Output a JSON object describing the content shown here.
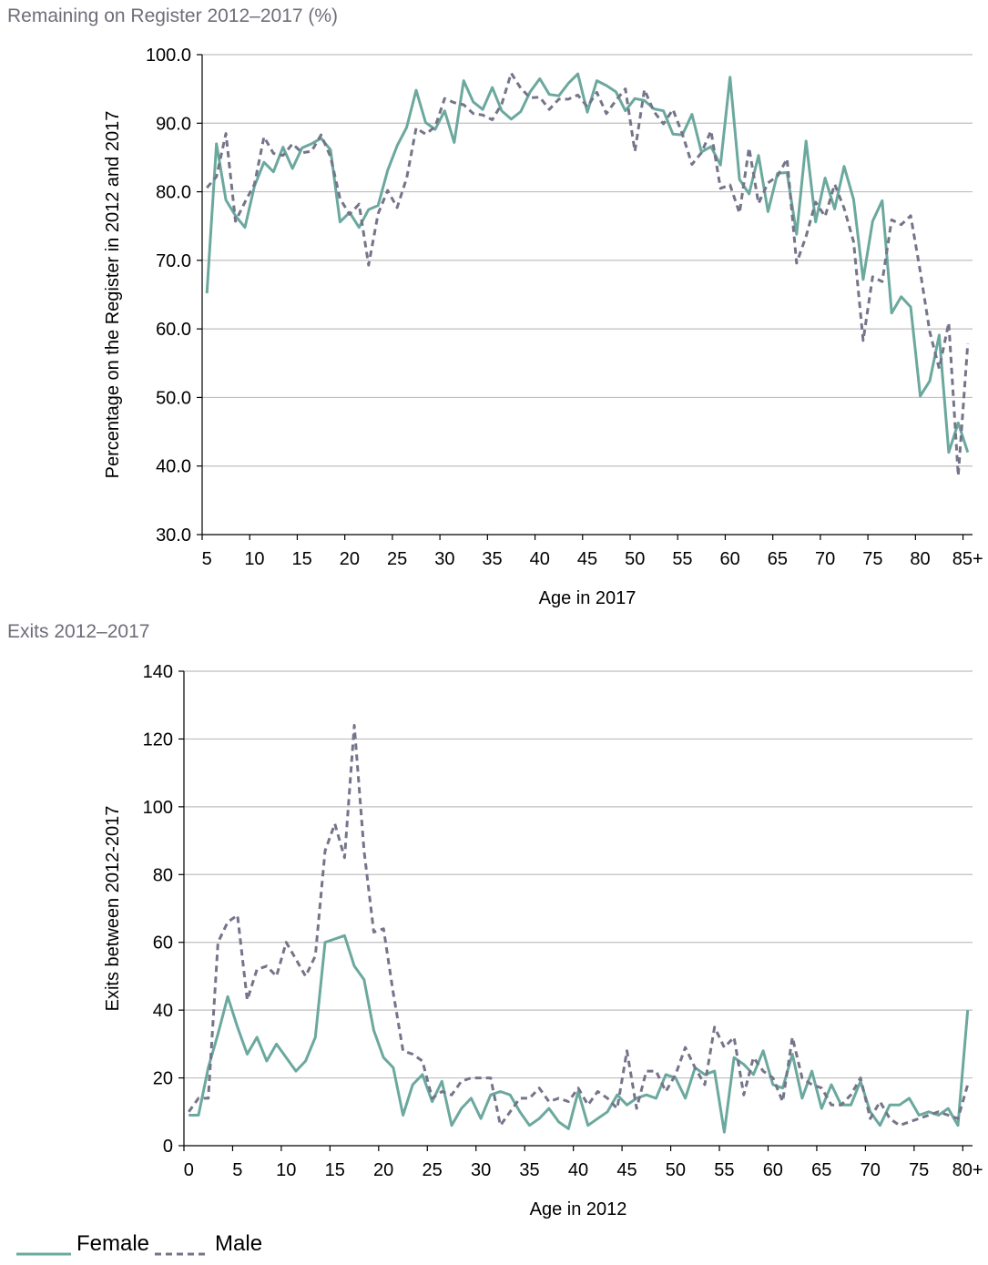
{
  "colors": {
    "female": "#6ba89e",
    "male": "#74748a",
    "grid": "#bfbfbf"
  },
  "legend": {
    "female": "Female",
    "male": "Male"
  },
  "chart_data": [
    {
      "type": "line",
      "title": "Remaining on Register 2012–2017 (%)",
      "xlabel": "Age in 2017",
      "ylabel": "Percentage on the Register in 2012 and 2017",
      "ylim": [
        30,
        100
      ],
      "yticks": [
        "30.0",
        "40.0",
        "50.0",
        "60.0",
        "70.0",
        "80.0",
        "90.0",
        "100.0"
      ],
      "x": [
        "5",
        "6",
        "7",
        "8",
        "9",
        "10",
        "11",
        "12",
        "13",
        "14",
        "15",
        "16",
        "17",
        "18",
        "19",
        "20",
        "21",
        "22",
        "23",
        "24",
        "25",
        "26",
        "27",
        "28",
        "29",
        "30",
        "31",
        "32",
        "33",
        "34",
        "35",
        "36",
        "37",
        "38",
        "39",
        "40",
        "41",
        "42",
        "43",
        "44",
        "45",
        "46",
        "47",
        "48",
        "49",
        "50",
        "51",
        "52",
        "53",
        "54",
        "55",
        "56",
        "57",
        "58",
        "59",
        "60",
        "61",
        "62",
        "63",
        "64",
        "65",
        "66",
        "67",
        "68",
        "69",
        "70",
        "71",
        "72",
        "73",
        "74",
        "75",
        "76",
        "77",
        "78",
        "79",
        "80",
        "81",
        "82",
        "83",
        "84",
        "85+"
      ],
      "xtick_labels": [
        "5",
        "10",
        "15",
        "20",
        "25",
        "30",
        "35",
        "40",
        "45",
        "50",
        "55",
        "60",
        "65",
        "70",
        "75",
        "80",
        "85+"
      ],
      "grid": true,
      "legend_position": "bottom-left",
      "series": [
        {
          "name": "Female",
          "style": "solid",
          "values": [
            65.2,
            87.0,
            78.8,
            76.5,
            74.8,
            80.8,
            84.3,
            82.9,
            86.5,
            83.4,
            86.4,
            87.0,
            87.8,
            86.1,
            75.6,
            77.0,
            74.8,
            77.4,
            78.0,
            83.1,
            86.7,
            89.4,
            94.8,
            90.1,
            89.1,
            91.8,
            87.2,
            96.2,
            93.1,
            92.0,
            95.2,
            91.8,
            90.6,
            91.7,
            94.6,
            96.5,
            94.2,
            94.0,
            95.8,
            97.2,
            91.6,
            96.2,
            95.5,
            94.6,
            91.8,
            93.6,
            93.3,
            92.1,
            91.8,
            88.4,
            88.3,
            91.3,
            85.8,
            86.6,
            83.9,
            96.7,
            81.8,
            79.7,
            85.3,
            77.1,
            82.7,
            82.8,
            73.8,
            87.4,
            75.6,
            82.0,
            77.5,
            83.7,
            78.9,
            67.2,
            75.7,
            78.7,
            62.3,
            64.7,
            63.2,
            50.2,
            52.4,
            59.1,
            42.0,
            46.3,
            42.0
          ]
        },
        {
          "name": "Male",
          "style": "dashed",
          "values": [
            80.6,
            82.2,
            88.5,
            75.7,
            78.5,
            81.1,
            88.0,
            85.6,
            85.3,
            87.0,
            85.7,
            85.9,
            88.3,
            85.1,
            79.0,
            76.7,
            78.2,
            69.3,
            76.8,
            80.2,
            77.7,
            82.0,
            89.3,
            88.4,
            89.5,
            93.6,
            93.0,
            92.7,
            91.4,
            91.2,
            90.5,
            92.8,
            97.3,
            95.1,
            93.7,
            93.8,
            92.0,
            93.5,
            93.5,
            94.1,
            92.4,
            94.5,
            91.4,
            93.3,
            95.0,
            85.9,
            94.9,
            91.7,
            89.9,
            92.0,
            88.4,
            84.0,
            85.7,
            88.9,
            80.5,
            81.0,
            76.9,
            86.4,
            78.3,
            81.3,
            82.3,
            84.8,
            69.6,
            73.5,
            78.5,
            76.4,
            81.1,
            77.6,
            72.7,
            58.3,
            67.6,
            66.9,
            75.9,
            75.2,
            76.5,
            68.4,
            59.6,
            54.2,
            60.9,
            38.6,
            57.9
          ]
        }
      ]
    },
    {
      "type": "line",
      "title": "Exits 2012–2017",
      "xlabel": "Age in 2012",
      "ylabel": "Exits between 2012-2017",
      "ylim": [
        0,
        140
      ],
      "yticks": [
        "0",
        "20",
        "40",
        "60",
        "80",
        "100",
        "120",
        "140"
      ],
      "x": [
        "0",
        "1",
        "2",
        "3",
        "4",
        "5",
        "6",
        "7",
        "8",
        "9",
        "10",
        "11",
        "12",
        "13",
        "14",
        "15",
        "16",
        "17",
        "18",
        "19",
        "20",
        "21",
        "22",
        "23",
        "24",
        "25",
        "26",
        "27",
        "28",
        "29",
        "30",
        "31",
        "32",
        "33",
        "34",
        "35",
        "36",
        "37",
        "38",
        "39",
        "40",
        "41",
        "42",
        "43",
        "44",
        "45",
        "46",
        "47",
        "48",
        "49",
        "50",
        "51",
        "52",
        "53",
        "54",
        "55",
        "56",
        "57",
        "58",
        "59",
        "60",
        "61",
        "62",
        "63",
        "64",
        "65",
        "66",
        "67",
        "68",
        "69",
        "70",
        "71",
        "72",
        "73",
        "74",
        "75",
        "76",
        "77",
        "78",
        "79",
        "80+"
      ],
      "xtick_labels": [
        "0",
        "5",
        "10",
        "15",
        "20",
        "25",
        "30",
        "35",
        "40",
        "45",
        "50",
        "55",
        "60",
        "65",
        "70",
        "75",
        "80+"
      ],
      "grid": true,
      "legend_position": "bottom-left",
      "series": [
        {
          "name": "Female",
          "style": "solid",
          "values": [
            9,
            9,
            23,
            33,
            44,
            35,
            27,
            32,
            25,
            30,
            26,
            22,
            25,
            32,
            60,
            61,
            62,
            53,
            49,
            34,
            26,
            23,
            9,
            18,
            21,
            13,
            19,
            6,
            11,
            14,
            8,
            15,
            16,
            15,
            10,
            6,
            8,
            11,
            7,
            5,
            16,
            6,
            8,
            10,
            15,
            12,
            14,
            15,
            14,
            21,
            20,
            14,
            23,
            21,
            22,
            4,
            26,
            24,
            21,
            28,
            18,
            17,
            27,
            14,
            22,
            11,
            18,
            12,
            12,
            19,
            10,
            6,
            12,
            12,
            14,
            9,
            10,
            9,
            11,
            6,
            40
          ]
        },
        {
          "name": "Male",
          "style": "dashed",
          "values": [
            10,
            14,
            14,
            60,
            66,
            68,
            43,
            52,
            53,
            50,
            60,
            55,
            50,
            56,
            87,
            95,
            85,
            124,
            87,
            63,
            64,
            45,
            28,
            27,
            25,
            14,
            16,
            15,
            19,
            20,
            20,
            20,
            6,
            10,
            14,
            14,
            17,
            13,
            14,
            13,
            17,
            12,
            16,
            14,
            11,
            28,
            11,
            22,
            22,
            16,
            21,
            29,
            23,
            18,
            35,
            29,
            32,
            15,
            26,
            22,
            20,
            13,
            32,
            20,
            18,
            17,
            12,
            12,
            15,
            20,
            8,
            13,
            8,
            6,
            7,
            8,
            9,
            10,
            9,
            8,
            18
          ]
        }
      ]
    }
  ]
}
